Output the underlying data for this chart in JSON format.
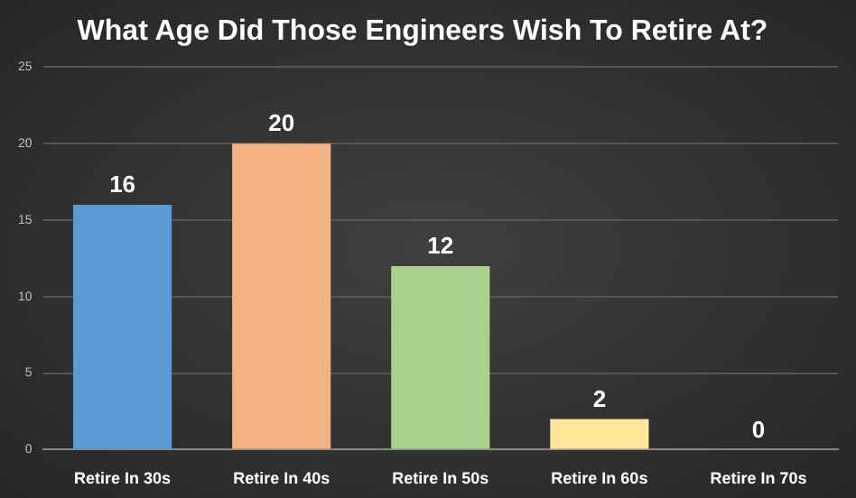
{
  "chart_data": {
    "type": "bar",
    "title": "What Age Did Those Engineers Wish To Retire At?",
    "categories": [
      "Retire In 30s",
      "Retire In 40s",
      "Retire In 50s",
      "Retire In 60s",
      "Retire In 70s"
    ],
    "values": [
      16,
      20,
      12,
      2,
      0
    ],
    "colors": [
      "#5b9bd5",
      "#f4b183",
      "#a9d18e",
      "#ffe699",
      "#bfbfbf"
    ],
    "ylim": [
      0,
      25
    ],
    "yticks": [
      0,
      5,
      10,
      15,
      20,
      25
    ],
    "grid": "y",
    "data_labels": true
  }
}
